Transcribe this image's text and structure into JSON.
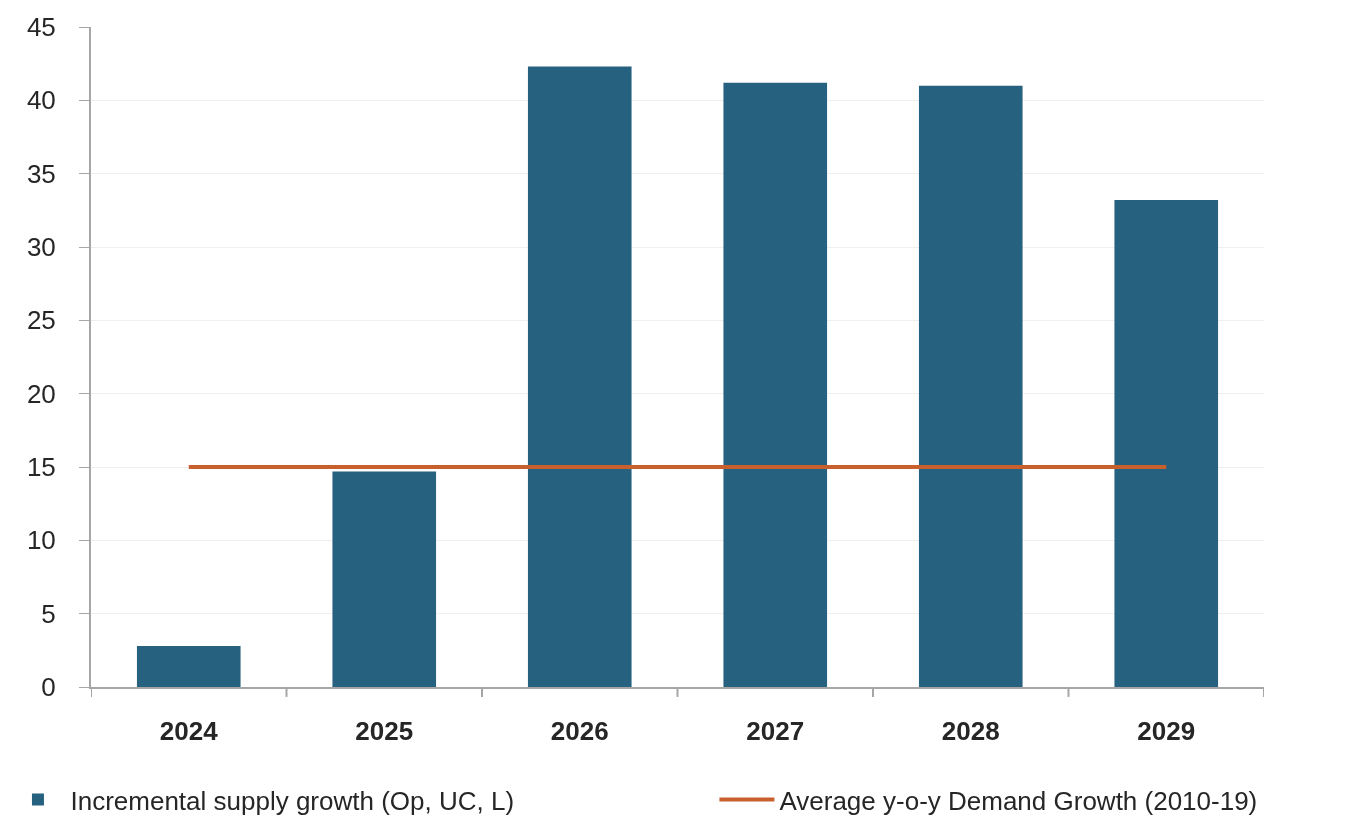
{
  "chart_data": {
    "type": "bar",
    "categories": [
      "2024",
      "2025",
      "2026",
      "2027",
      "2028",
      "2029"
    ],
    "series": [
      {
        "name": "Incremental supply growth (Op, UC, L)",
        "color": "#276180",
        "values": [
          2.8,
          14.7,
          42.3,
          41.2,
          41.0,
          33.2
        ]
      },
      {
        "name": "Average y-o-y Demand Growth (2010-19)",
        "type": "line",
        "color": "#c8602e",
        "values": [
          15,
          15,
          15,
          15,
          15,
          15
        ]
      }
    ],
    "ylim": [
      0,
      45
    ],
    "yticks": [
      0,
      5,
      10,
      15,
      20,
      25,
      30,
      35,
      40,
      45
    ],
    "grid": "y",
    "legend": "bottom"
  }
}
